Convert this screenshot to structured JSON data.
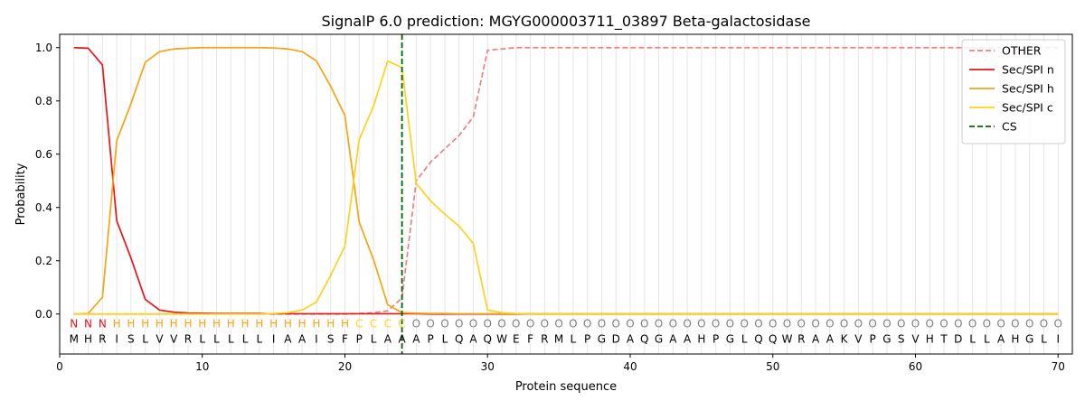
{
  "chart_data": {
    "type": "line",
    "title": "SignalP 6.0 prediction: MGYG000003711_03897 Beta-galactosidase",
    "xlabel": "Protein sequence",
    "ylabel": "Probability",
    "xlim": [
      0,
      71
    ],
    "ylim": [
      -0.15,
      1.05
    ],
    "xticks": [
      0,
      10,
      20,
      30,
      40,
      50,
      60,
      70
    ],
    "yticks": [
      0.0,
      0.2,
      0.4,
      0.6,
      0.8,
      1.0
    ],
    "ytick_labels": [
      "0.0",
      "0.2",
      "0.4",
      "0.6",
      "0.8",
      "1.0"
    ],
    "grid": "vertical lines at each residue",
    "legend_position": "top-right",
    "x": [
      1,
      2,
      3,
      4,
      5,
      6,
      7,
      8,
      9,
      10,
      11,
      12,
      13,
      14,
      15,
      16,
      17,
      18,
      19,
      20,
      21,
      22,
      23,
      24,
      25,
      26,
      27,
      28,
      29,
      30,
      31,
      32,
      33,
      34,
      35,
      36,
      37,
      38,
      39,
      40,
      41,
      42,
      43,
      44,
      45,
      46,
      47,
      48,
      49,
      50,
      51,
      52,
      53,
      54,
      55,
      56,
      57,
      58,
      59,
      60,
      61,
      62,
      63,
      64,
      65,
      66,
      67,
      68,
      69,
      70
    ],
    "sequence": [
      "M",
      "H",
      "R",
      "I",
      "S",
      "L",
      "V",
      "V",
      "R",
      "L",
      "L",
      "L",
      "L",
      "L",
      "I",
      "A",
      "A",
      "I",
      "S",
      "F",
      "P",
      "L",
      "A",
      "A",
      "A",
      "P",
      "L",
      "Q",
      "A",
      "Q",
      "W",
      "E",
      "F",
      "R",
      "M",
      "L",
      "P",
      "G",
      "D",
      "A",
      "Q",
      "G",
      "A",
      "A",
      "H",
      "P",
      "G",
      "L",
      "Q",
      "Q",
      "W",
      "R",
      "A",
      "A",
      "K",
      "V",
      "P",
      "G",
      "S",
      "V",
      "H",
      "T",
      "D",
      "L",
      "L",
      "A",
      "H",
      "G",
      "L",
      "I"
    ],
    "region_labels": [
      "N",
      "N",
      "N",
      "H",
      "H",
      "H",
      "H",
      "H",
      "H",
      "H",
      "H",
      "H",
      "H",
      "H",
      "H",
      "H",
      "H",
      "H",
      "H",
      "H",
      "C",
      "C",
      "C",
      "C",
      "O",
      "O",
      "O",
      "O",
      "O",
      "O",
      "O",
      "O",
      "O",
      "O",
      "O",
      "O",
      "O",
      "O",
      "O",
      "O",
      "O",
      "O",
      "O",
      "O",
      "O",
      "O",
      "O",
      "O",
      "O",
      "O",
      "O",
      "O",
      "O",
      "O",
      "O",
      "O",
      "O",
      "O",
      "O",
      "O",
      "O",
      "O",
      "O",
      "O",
      "O",
      "O",
      "O",
      "O",
      "O",
      "O"
    ],
    "region_colors": {
      "N": "#e8141a",
      "H": "#f5a414",
      "C": "#ffd21c",
      "O": "#808080"
    },
    "series": [
      {
        "name": "OTHER",
        "color": "#f08080",
        "dash": "dashed",
        "values": [
          0,
          0,
          0,
          0,
          0,
          0,
          0,
          0,
          0,
          0,
          0,
          0,
          0,
          0,
          0,
          0,
          0,
          0,
          0,
          0,
          0.002,
          0.005,
          0.012,
          0.06,
          0.5,
          0.57,
          0.62,
          0.67,
          0.74,
          0.99,
          0.995,
          1,
          1,
          1,
          1,
          1,
          1,
          1,
          1,
          1,
          1,
          1,
          1,
          1,
          1,
          1,
          1,
          1,
          1,
          1,
          1,
          1,
          1,
          1,
          1,
          1,
          1,
          1,
          1,
          1,
          1,
          1,
          1,
          1,
          1,
          1,
          1,
          1,
          1,
          1
        ]
      },
      {
        "name": "Sec/SPI n",
        "color": "#e8141a",
        "dash": "solid",
        "values": [
          1.0,
          0.998,
          0.935,
          0.35,
          0.21,
          0.055,
          0.015,
          0.007,
          0.004,
          0.003,
          0.002,
          0.002,
          0.002,
          0.002,
          0.001,
          0.001,
          0.001,
          0.001,
          0.001,
          0.001,
          0.001,
          0.001,
          0.001,
          0.001,
          0.001,
          0,
          0,
          0,
          0,
          0,
          0,
          0,
          0,
          0,
          0,
          0,
          0,
          0,
          0,
          0,
          0,
          0,
          0,
          0,
          0,
          0,
          0,
          0,
          0,
          0,
          0,
          0,
          0,
          0,
          0,
          0,
          0,
          0,
          0,
          0,
          0,
          0,
          0,
          0,
          0,
          0,
          0,
          0,
          0,
          0
        ]
      },
      {
        "name": "Sec/SPI h",
        "color": "#f5a414",
        "dash": "solid",
        "values": [
          0,
          0.002,
          0.063,
          0.65,
          0.79,
          0.945,
          0.985,
          0.995,
          0.998,
          1.0,
          1.0,
          1.0,
          1.0,
          1.0,
          0.999,
          0.995,
          0.985,
          0.95,
          0.855,
          0.745,
          0.345,
          0.205,
          0.035,
          0.005,
          0.003,
          0.002,
          0.002,
          0.001,
          0.001,
          0.001,
          0.001,
          0.001,
          0.001,
          0.001,
          0.001,
          0.001,
          0.001,
          0.001,
          0.001,
          0.001,
          0.001,
          0.001,
          0.001,
          0.001,
          0.001,
          0.001,
          0.001,
          0.001,
          0.001,
          0.001,
          0.001,
          0.001,
          0.001,
          0.001,
          0.001,
          0.001,
          0.001,
          0.001,
          0.001,
          0.001,
          0.001,
          0.001,
          0.001,
          0.001,
          0.001,
          0.001,
          0.001,
          0.001,
          0.001,
          0.001
        ]
      },
      {
        "name": "Sec/SPI c",
        "color": "#ffd21c",
        "dash": "solid",
        "values": [
          0,
          0,
          0,
          0,
          0,
          0,
          0,
          0,
          0,
          0,
          0,
          0,
          0,
          0,
          0.002,
          0.005,
          0.015,
          0.045,
          0.145,
          0.255,
          0.655,
          0.78,
          0.95,
          0.925,
          0.49,
          0.425,
          0.375,
          0.33,
          0.265,
          0.015,
          0.005,
          0.002,
          0,
          0,
          0,
          0,
          0,
          0,
          0,
          0,
          0,
          0,
          0,
          0,
          0,
          0,
          0,
          0,
          0,
          0,
          0,
          0,
          0,
          0,
          0,
          0,
          0,
          0,
          0,
          0,
          0,
          0,
          0,
          0,
          0,
          0,
          0,
          0,
          0,
          0
        ]
      }
    ],
    "cleavage_site": {
      "name": "CS",
      "x": 24,
      "color": "#006400",
      "dash": "dashed"
    }
  }
}
